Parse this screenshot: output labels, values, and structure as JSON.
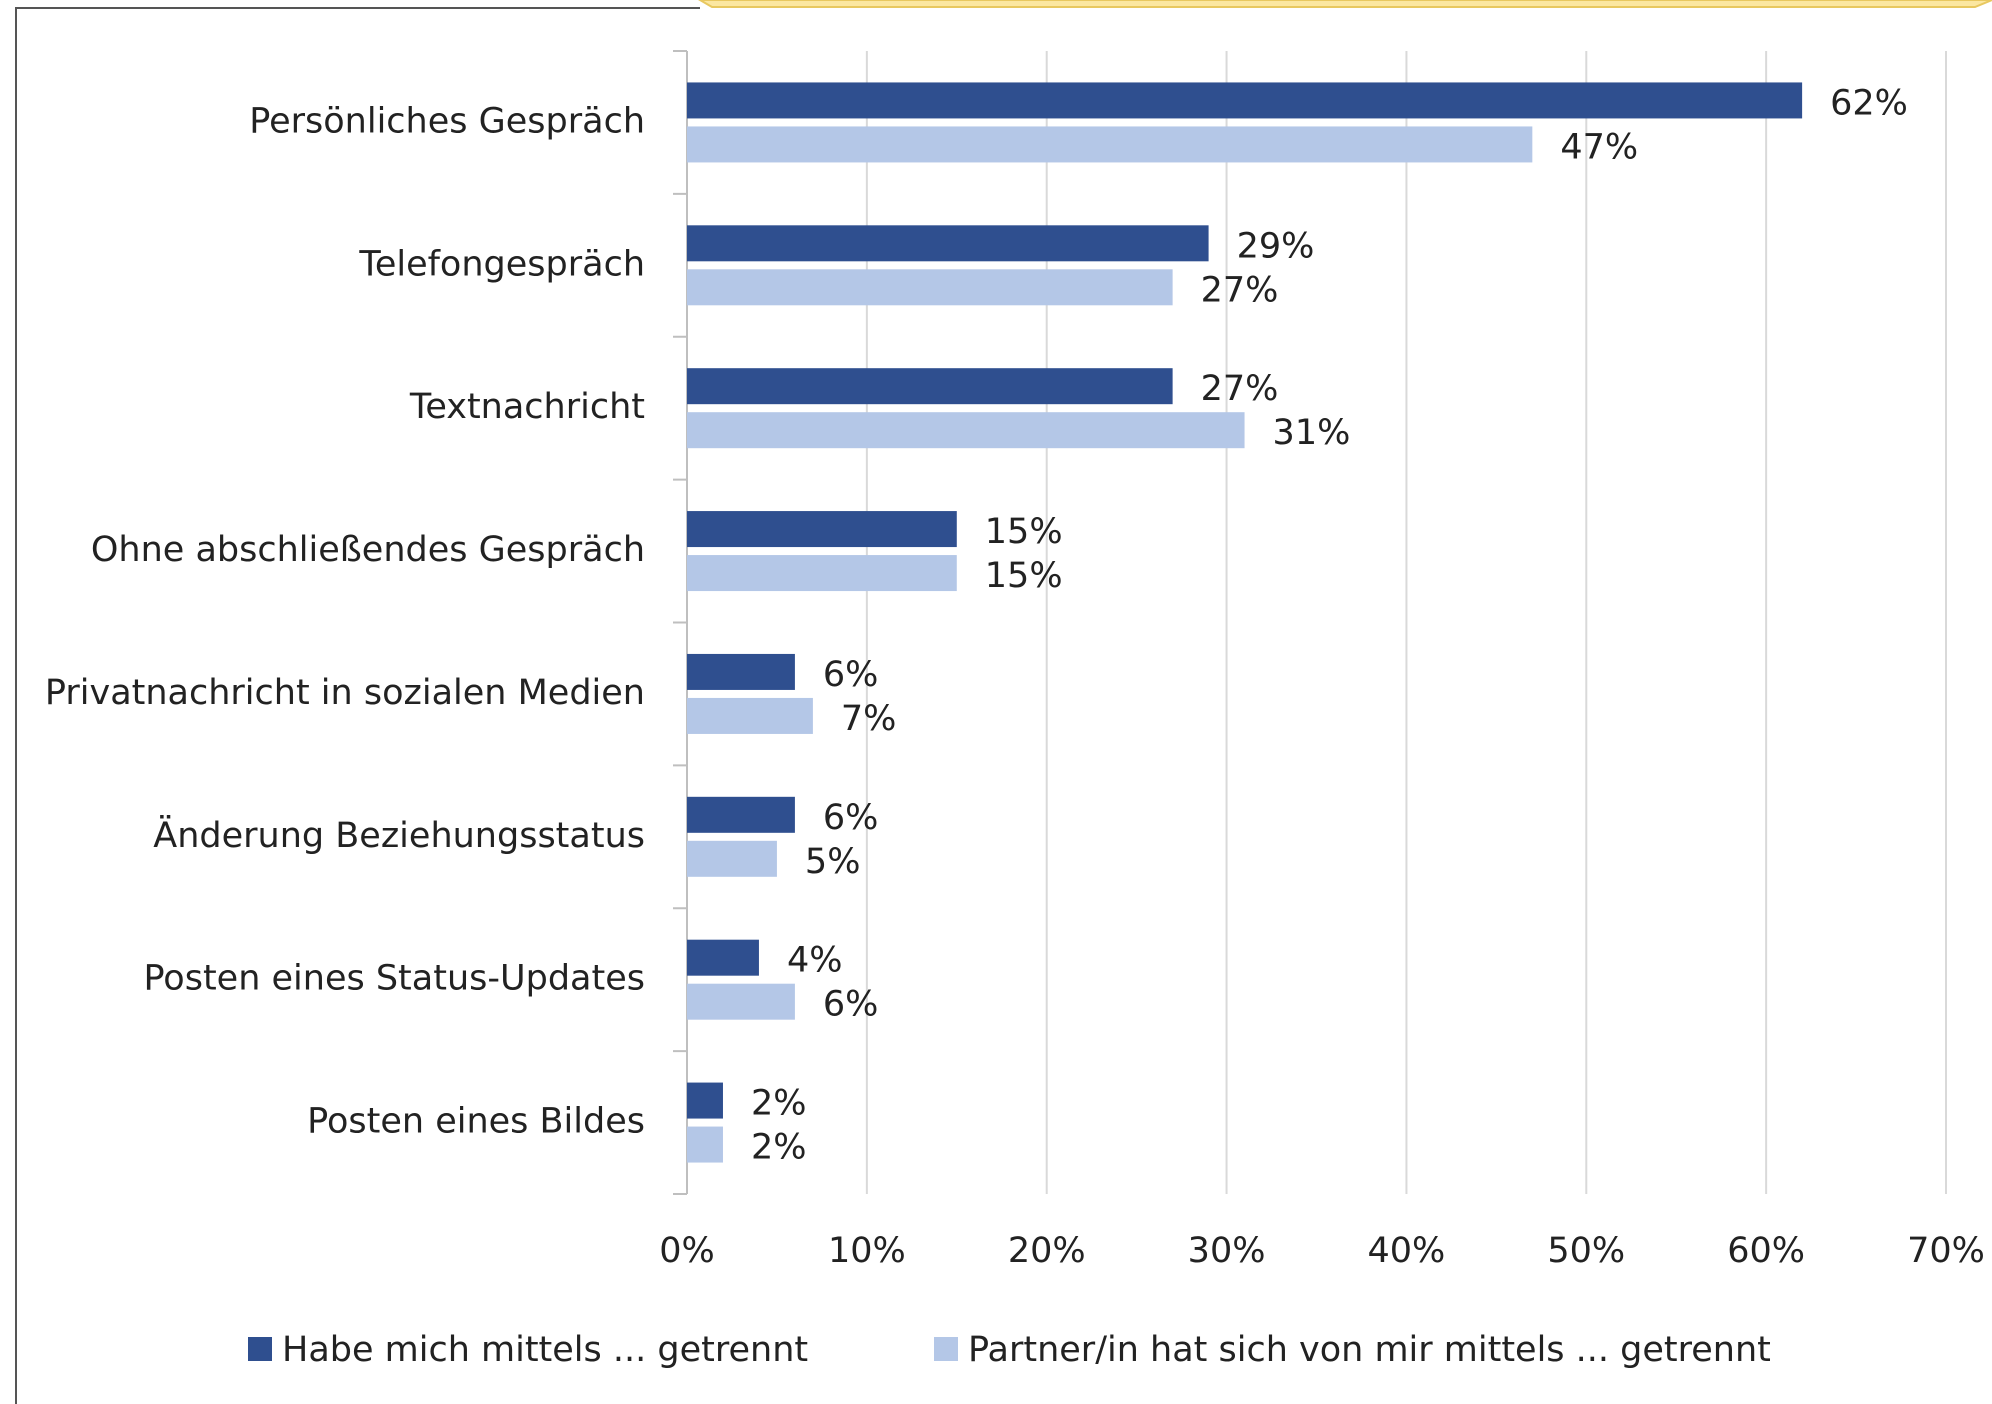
{
  "chart_data": {
    "type": "hbar",
    "categories": [
      "Persönliches Gespräch",
      "Telefongespräch",
      "Textnachricht",
      "Ohne abschließendes Gespräch",
      "Privatnachricht in sozialen Medien",
      "Änderung Beziehungsstatus",
      "Posten eines Status-Updates",
      "Posten eines Bildes"
    ],
    "series": [
      {
        "name": "Habe mich mittels ... getrennt",
        "color": "#2f4f8f",
        "values": [
          62,
          29,
          27,
          15,
          6,
          6,
          4,
          2
        ],
        "value_labels": [
          "62%",
          "29%",
          "27%",
          "15%",
          "6%",
          "6%",
          "4%",
          "2%"
        ]
      },
      {
        "name": "Partner/in hat sich von mir mittels ... getrennt",
        "color": "#b4c7e7",
        "values": [
          47,
          27,
          31,
          15,
          7,
          5,
          6,
          2
        ],
        "value_labels": [
          "47%",
          "27%",
          "31%",
          "15%",
          "7%",
          "5%",
          "6%",
          "2%"
        ]
      }
    ],
    "xlim": [
      0,
      70
    ],
    "xticks": [
      {
        "value": 0,
        "label": "0%"
      },
      {
        "value": 10,
        "label": "10%"
      },
      {
        "value": 20,
        "label": "20%"
      },
      {
        "value": 30,
        "label": "30%"
      },
      {
        "value": 40,
        "label": "40%"
      },
      {
        "value": 50,
        "label": "50%"
      },
      {
        "value": 60,
        "label": "60%"
      },
      {
        "value": 70,
        "label": "70%"
      }
    ],
    "grid": true,
    "legend": "bottom"
  }
}
